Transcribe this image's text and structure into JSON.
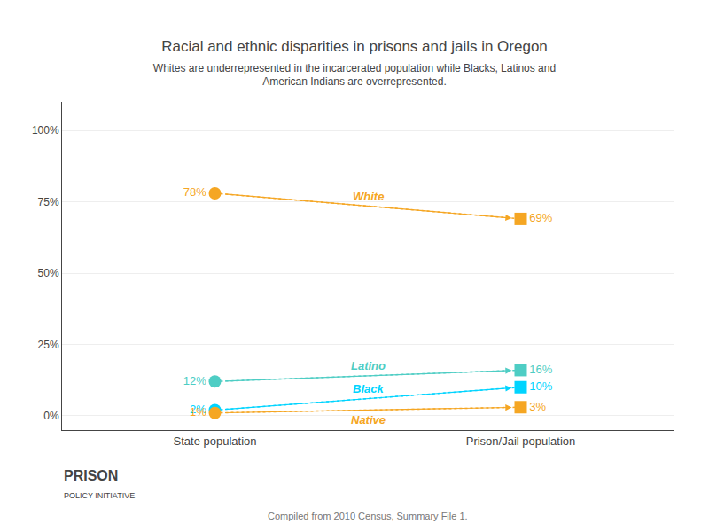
{
  "chart_data": {
    "type": "line",
    "title": "Racial and ethnic disparities in prisons and jails in Oregon",
    "subtitle": "Whites are underrepresented in the incarcerated population while Blacks, Latinos and\nAmerican Indians are overrepresented.",
    "categories": [
      "State population",
      "Prison/Jail population"
    ],
    "series": [
      {
        "name": "White",
        "color": "#f5a623",
        "values": [
          78,
          69
        ],
        "value_labels": [
          "78%",
          "69%"
        ]
      },
      {
        "name": "Latino",
        "color": "#4ecdc4",
        "values": [
          12,
          16
        ],
        "value_labels": [
          "12%",
          "16%"
        ]
      },
      {
        "name": "Black",
        "color": "#00d4ff",
        "values": [
          2,
          10
        ],
        "value_labels": [
          "2%",
          "10%"
        ]
      },
      {
        "name": "Native",
        "color": "#f5a623",
        "values": [
          1,
          3
        ],
        "value_labels": [
          "1%",
          "3%"
        ]
      }
    ],
    "ylim": [
      -5,
      110
    ],
    "yticks": [
      {
        "value": 0,
        "label": "0%"
      },
      {
        "value": 25,
        "label": "25%"
      },
      {
        "value": 50,
        "label": "50%"
      },
      {
        "value": 75,
        "label": "75%"
      },
      {
        "value": 100,
        "label": "100%"
      }
    ],
    "grid": true,
    "data_labels": true,
    "line_style": "dotted",
    "annotations": [
      "Compiled from 2010 Census, Summary File 1.",
      "PRISON",
      "POLICY INITIATIVE"
    ]
  }
}
